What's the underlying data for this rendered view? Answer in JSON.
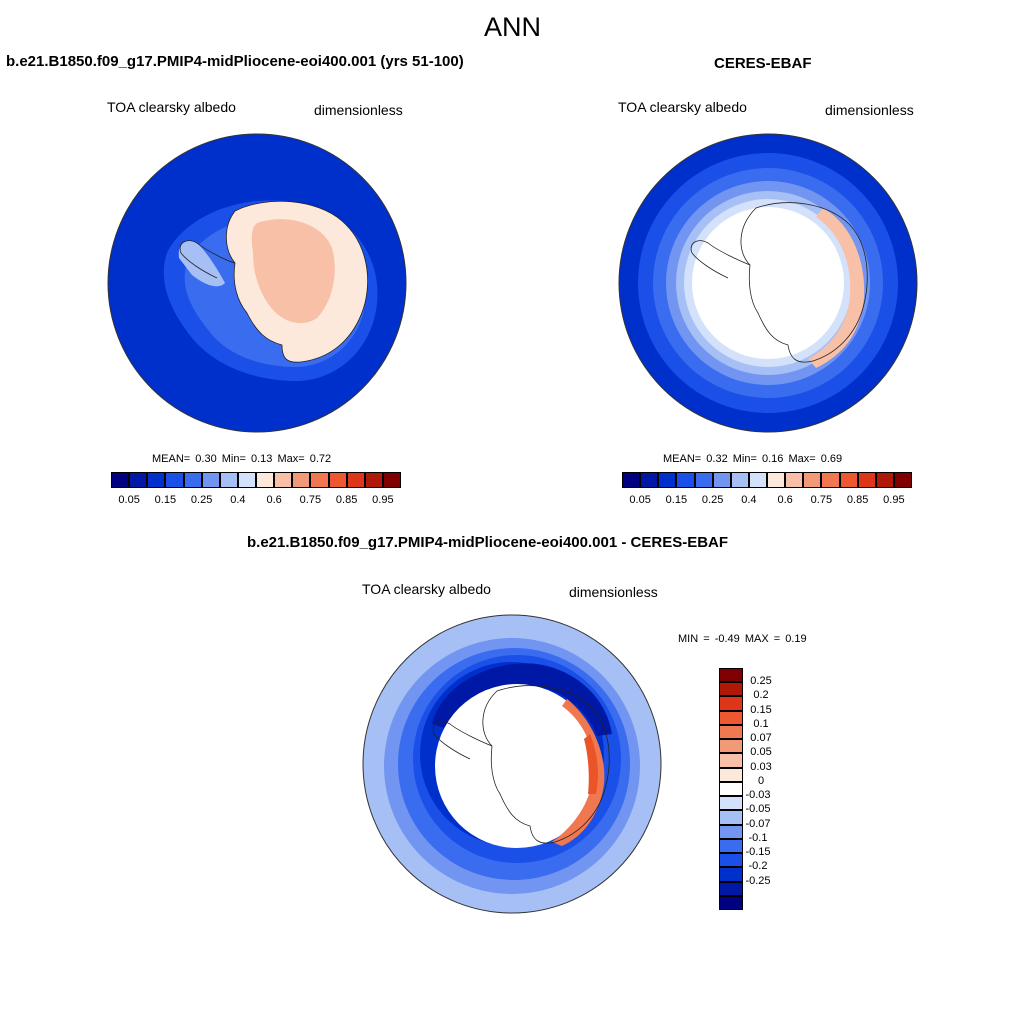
{
  "figure": {
    "season": "ANN"
  },
  "panels": {
    "model": {
      "case_title": "b.e21.B1850.f09_g17.PMIP4-midPliocene-eoi400.001 (yrs 51-100)",
      "variable": "TOA clearsky albedo",
      "units": "dimensionless",
      "mean_label": "MEAN=",
      "mean": "0.30",
      "min_label": "Min=",
      "min": "0.13",
      "max_label": "Max=",
      "max": "0.72"
    },
    "obs": {
      "case_title": "CERES-EBAF",
      "variable": "TOA clearsky albedo",
      "units": "dimensionless",
      "mean_label": "MEAN=",
      "mean": "0.32",
      "min_label": "Min=",
      "min": "0.16",
      "max_label": "Max=",
      "max": "0.69"
    },
    "diff": {
      "case_title": "b.e21.B1850.f09_g17.PMIP4-midPliocene-eoi400.001 - CERES-EBAF",
      "variable": "TOA clearsky albedo",
      "units": "dimensionless",
      "min_label": "MIN =",
      "min": "-0.49",
      "max_label": "MAX =",
      "max": "0.19"
    }
  },
  "colorbars": {
    "abs": {
      "colors": [
        "#000080",
        "#0018a6",
        "#0030cc",
        "#1a50e8",
        "#3a6cf0",
        "#7295f2",
        "#a6c0f5",
        "#d3e2fa",
        "#fde8dc",
        "#f8c0a6",
        "#f29a78",
        "#f07850",
        "#ee5830",
        "#dd3618",
        "#b01808",
        "#800000"
      ],
      "labels": [
        "0.05",
        "0.15",
        "0.25",
        "0.4",
        "0.6",
        "0.75",
        "0.85",
        "0.95"
      ]
    },
    "diff": {
      "colors": [
        "#800000",
        "#b01808",
        "#dd3618",
        "#ee5830",
        "#f07850",
        "#f29a78",
        "#f8c0a6",
        "#fde8dc",
        "#ffffff",
        "#d3e2fa",
        "#a6c0f5",
        "#7295f2",
        "#3a6cf0",
        "#1a50e8",
        "#0030cc",
        "#0018a6",
        "#000080"
      ],
      "labels": [
        "0.25",
        "0.2",
        "0.15",
        "0.1",
        "0.07",
        "0.05",
        "0.03",
        "0",
        "-0.03",
        "-0.05",
        "-0.07",
        "-0.1",
        "-0.15",
        "-0.2",
        "-0.25"
      ]
    }
  }
}
